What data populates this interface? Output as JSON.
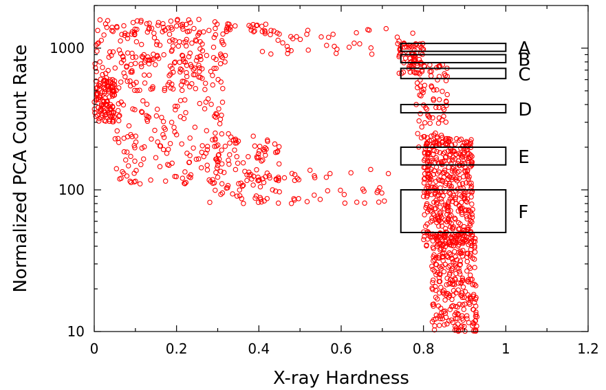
{
  "chart_data": {
    "type": "scatter",
    "xlabel": "X-ray Hardness",
    "ylabel": "Normalized PCA Count Rate",
    "xlim": [
      0,
      1.2
    ],
    "ylim": [
      10,
      2000
    ],
    "yscale": "log",
    "grid": false,
    "x_ticks": [
      "0",
      "0.2",
      "0.4",
      "0.6",
      "0.8",
      "1",
      "1.2"
    ],
    "y_ticks": [
      "10",
      "100",
      "1000"
    ],
    "marker_color": "#ff0000",
    "marker": "open-circle",
    "regions": [
      {
        "label": "A",
        "x": [
          0.745,
          1.0
        ],
        "y": [
          950,
          1080
        ]
      },
      {
        "label": "B",
        "x": [
          0.745,
          1.0
        ],
        "y": [
          790,
          900
        ]
      },
      {
        "label": "C",
        "x": [
          0.745,
          1.0
        ],
        "y": [
          610,
          720
        ]
      },
      {
        "label": "D",
        "x": [
          0.745,
          1.0
        ],
        "y": [
          350,
          400
        ]
      },
      {
        "label": "E",
        "x": [
          0.745,
          1.0
        ],
        "y": [
          150,
          200
        ]
      },
      {
        "label": "F",
        "x": [
          0.745,
          1.0
        ],
        "y": [
          50,
          100
        ]
      }
    ],
    "clusters": [
      {
        "x": [
          0.0,
          0.32
        ],
        "y": [
          500,
          1600
        ],
        "n": 260
      },
      {
        "x": [
          0.0,
          0.05
        ],
        "y": [
          300,
          600
        ],
        "n": 110
      },
      {
        "x": [
          0.32,
          0.45
        ],
        "y": [
          1300,
          1500
        ],
        "n": 25
      },
      {
        "x": [
          0.4,
          0.8
        ],
        "y": [
          900,
          1400
        ],
        "n": 45
      },
      {
        "x": [
          0.74,
          0.8
        ],
        "y": [
          650,
          1100
        ],
        "n": 60
      },
      {
        "x": [
          0.05,
          0.32
        ],
        "y": [
          110,
          450
        ],
        "n": 150
      },
      {
        "x": [
          0.28,
          0.45
        ],
        "y": [
          80,
          250
        ],
        "n": 110
      },
      {
        "x": [
          0.45,
          0.72
        ],
        "y": [
          80,
          140
        ],
        "n": 35
      },
      {
        "x": [
          0.78,
          0.86
        ],
        "y": [
          200,
          800
        ],
        "n": 90
      },
      {
        "x": [
          0.8,
          0.92
        ],
        "y": [
          40,
          230
        ],
        "n": 420
      },
      {
        "x": [
          0.82,
          0.93
        ],
        "y": [
          10,
          50
        ],
        "n": 280
      }
    ]
  }
}
